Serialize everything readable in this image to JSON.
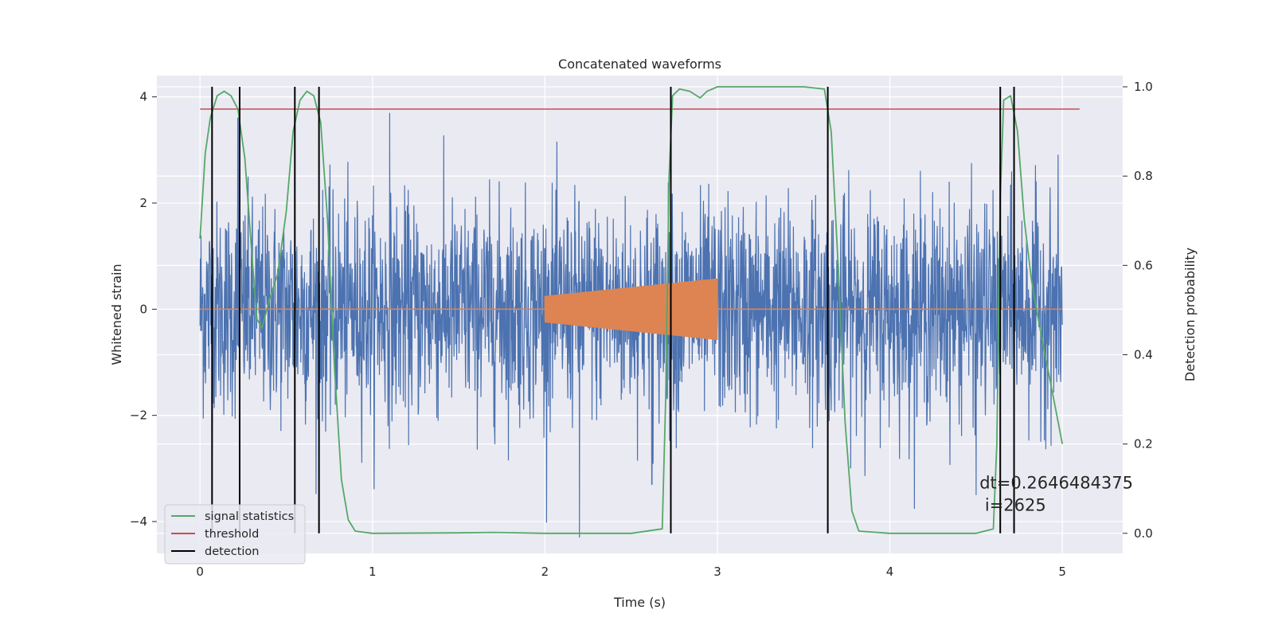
{
  "chart_data": {
    "type": "line",
    "title": "Concatenated waveforms",
    "xlabel": "Time (s)",
    "ylabel": "Whitened strain",
    "y2label": "Detection probability",
    "xlim": [
      -0.25,
      5.35
    ],
    "ylim": [
      -4.6,
      4.4
    ],
    "y2lim": [
      -0.045,
      1.025
    ],
    "xticks": [
      0,
      1,
      2,
      3,
      4,
      5
    ],
    "yticks": [
      -4,
      -2,
      0,
      2,
      4
    ],
    "ytick_labels": [
      "−4",
      "−2",
      "0",
      "2",
      "4"
    ],
    "y2ticks": [
      0.0,
      0.2,
      0.4,
      0.6,
      0.8,
      1.0
    ],
    "y2tick_labels": [
      "0.0",
      "0.2",
      "0.4",
      "0.6",
      "0.8",
      "1.0"
    ],
    "grid": true,
    "legend_position": "bottom-left",
    "colors": {
      "background": "#eaeaf2",
      "grid": "#ffffff",
      "strain": "#4c72b0",
      "injection": "#dd8452",
      "signal": "#55a868",
      "threshold": "#c44e52",
      "detection": "#000000"
    },
    "series": [
      {
        "name": "strain",
        "axis": "left",
        "x_range": [
          0,
          5
        ],
        "typical_amplitude": 1.0,
        "peaks": [
          {
            "x": 0.22,
            "y": 3.6
          },
          {
            "x": 1.1,
            "y": 3.7
          },
          {
            "x": 2.2,
            "y": -4.3
          },
          {
            "x": 2.62,
            "y": -3.3
          },
          {
            "x": 4.5,
            "y": -3.5
          }
        ]
      },
      {
        "name": "injection",
        "axis": "left",
        "x": [
          0,
          2.0,
          2.0,
          3.0,
          3.0,
          5.0
        ],
        "envelope": [
          0,
          0,
          0.25,
          0.58,
          0,
          0
        ]
      },
      {
        "name": "signal statistics",
        "axis": "right",
        "x": [
          0,
          0.03,
          0.06,
          0.1,
          0.14,
          0.18,
          0.22,
          0.26,
          0.3,
          0.33,
          0.36,
          0.4,
          0.45,
          0.5,
          0.54,
          0.58,
          0.62,
          0.66,
          0.7,
          0.74,
          0.78,
          0.82,
          0.86,
          0.9,
          1.0,
          1.5,
          1.7,
          2.0,
          2.5,
          2.68,
          2.7,
          2.72,
          2.74,
          2.78,
          2.84,
          2.9,
          2.94,
          3.0,
          3.5,
          3.62,
          3.66,
          3.7,
          3.74,
          3.78,
          3.82,
          4.0,
          4.5,
          4.6,
          4.62,
          4.64,
          4.66,
          4.7,
          4.74,
          4.78,
          4.82,
          4.86,
          4.9,
          4.95,
          5.0
        ],
        "y": [
          0.66,
          0.85,
          0.93,
          0.98,
          0.99,
          0.98,
          0.95,
          0.84,
          0.63,
          0.48,
          0.46,
          0.52,
          0.58,
          0.72,
          0.9,
          0.97,
          0.99,
          0.98,
          0.92,
          0.7,
          0.37,
          0.12,
          0.03,
          0.005,
          0.0,
          0.001,
          0.002,
          0.0,
          0.0,
          0.01,
          0.3,
          0.8,
          0.98,
          0.995,
          0.99,
          0.975,
          0.99,
          1.0,
          1.0,
          0.995,
          0.9,
          0.6,
          0.25,
          0.05,
          0.005,
          0.0,
          0.0,
          0.01,
          0.2,
          0.75,
          0.97,
          0.98,
          0.9,
          0.7,
          0.57,
          0.48,
          0.4,
          0.3,
          0.2
        ]
      },
      {
        "name": "threshold",
        "axis": "right",
        "x": [
          0,
          5.1
        ],
        "y": [
          0.95,
          0.95
        ]
      }
    ],
    "detections": [
      0.07,
      0.23,
      0.55,
      0.69,
      2.73,
      3.64,
      4.64,
      4.72
    ],
    "legend": [
      {
        "label": "signal statistics",
        "color": "#55a868"
      },
      {
        "label": "threshold",
        "color": "#c44e52"
      },
      {
        "label": "detection",
        "color": "#000000"
      }
    ],
    "annotation": {
      "line1": "dt=0.2646484375",
      "line2": " i=2625",
      "x": 4.52,
      "y": -3.8
    }
  }
}
